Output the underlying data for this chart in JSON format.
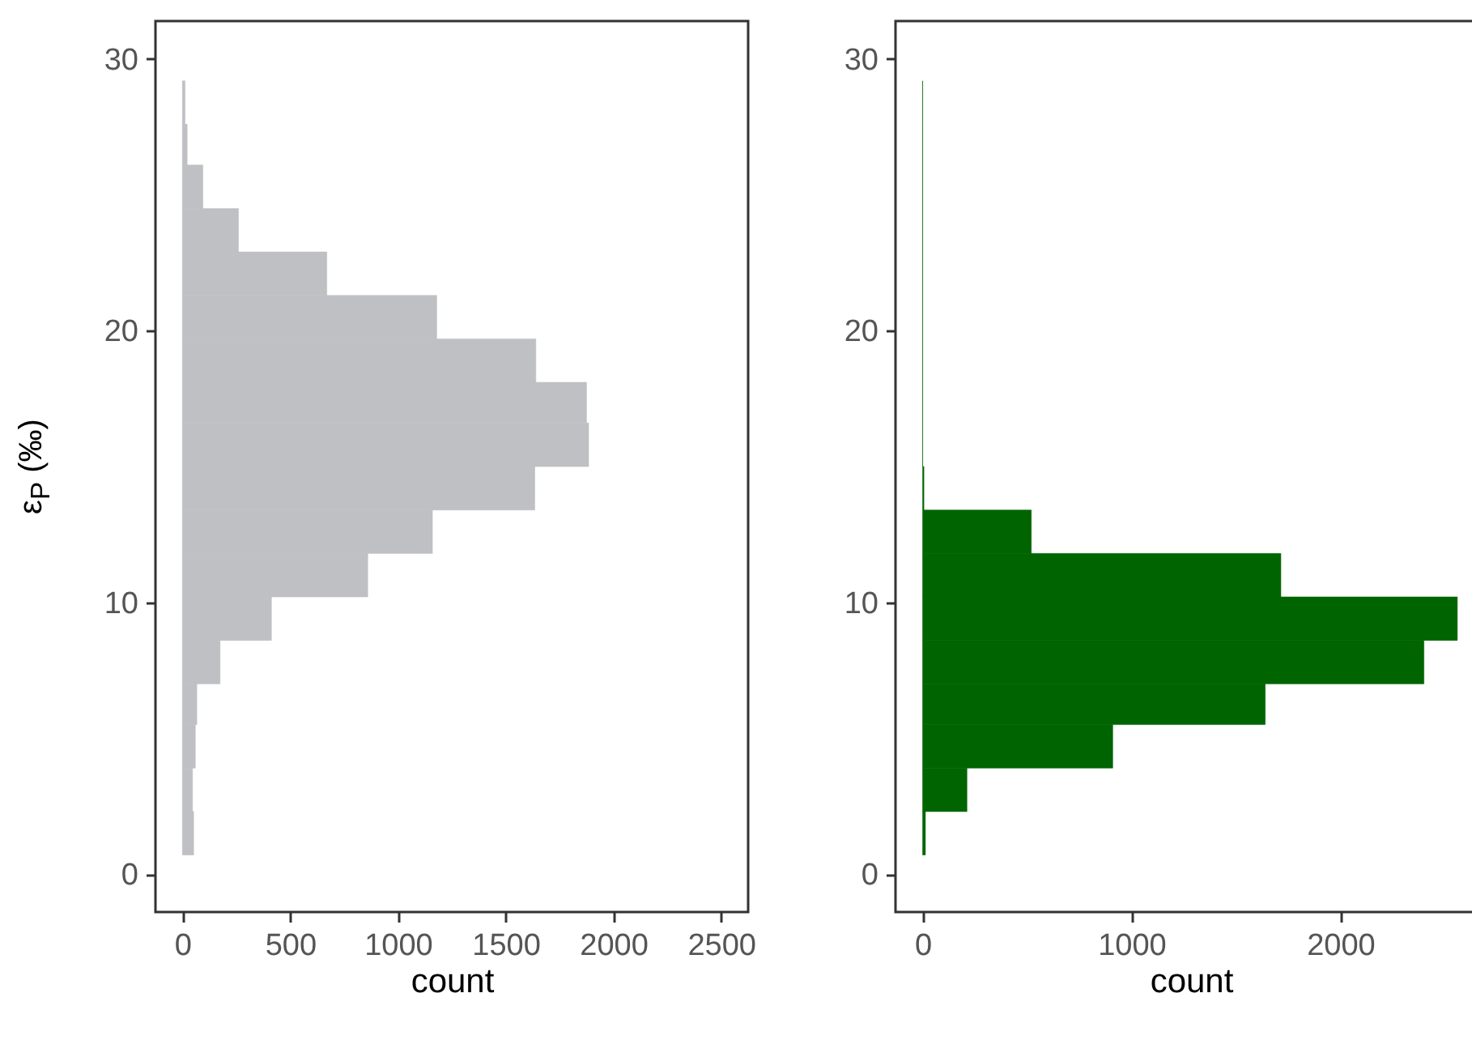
{
  "chart_data": [
    {
      "type": "histogram",
      "orientation": "horizontal",
      "color": "#bfc0c4",
      "xlabel": "count",
      "ylabel": "ε$_{P}$ (‰)",
      "bins": [
        0.7,
        2.3,
        3.9,
        5.5,
        7.0,
        8.6,
        10.2,
        11.8,
        13.4,
        15.0,
        16.6,
        18.1,
        19.7,
        21.3,
        22.9,
        24.5,
        26.1,
        27.6,
        29.2
      ],
      "values": [
        52,
        47,
        60,
        67,
        175,
        413,
        860,
        1160,
        1635,
        1885,
        1875,
        1640,
        1180,
        670,
        260,
        95,
        22,
        12
      ],
      "xlim": [
        -125,
        2625
      ],
      "xticks": [
        0,
        500,
        1000,
        1500,
        2000,
        2500
      ],
      "ylim": [
        -1.4,
        31.4
      ],
      "yticks": [
        0,
        10,
        20,
        30
      ]
    },
    {
      "type": "histogram",
      "orientation": "horizontal",
      "color": "#006400",
      "xlabel": "count",
      "bins": [
        0.7,
        2.3,
        3.9,
        5.5,
        7.0,
        8.6,
        10.2,
        11.8,
        13.4,
        15.0,
        16.6,
        18.1,
        19.7,
        21.3,
        22.9,
        24.5,
        26.1,
        27.6,
        29.2
      ],
      "values": [
        13,
        212,
        910,
        1640,
        2400,
        2560,
        1715,
        520,
        6,
        0,
        0,
        0,
        0,
        0,
        0,
        0,
        0,
        0
      ],
      "xlim": [
        -130,
        2700
      ],
      "xticks": [
        0,
        1000,
        2000
      ],
      "ylim": [
        -1.4,
        31.4
      ],
      "yticks": [
        0,
        10,
        20,
        30
      ]
    }
  ]
}
